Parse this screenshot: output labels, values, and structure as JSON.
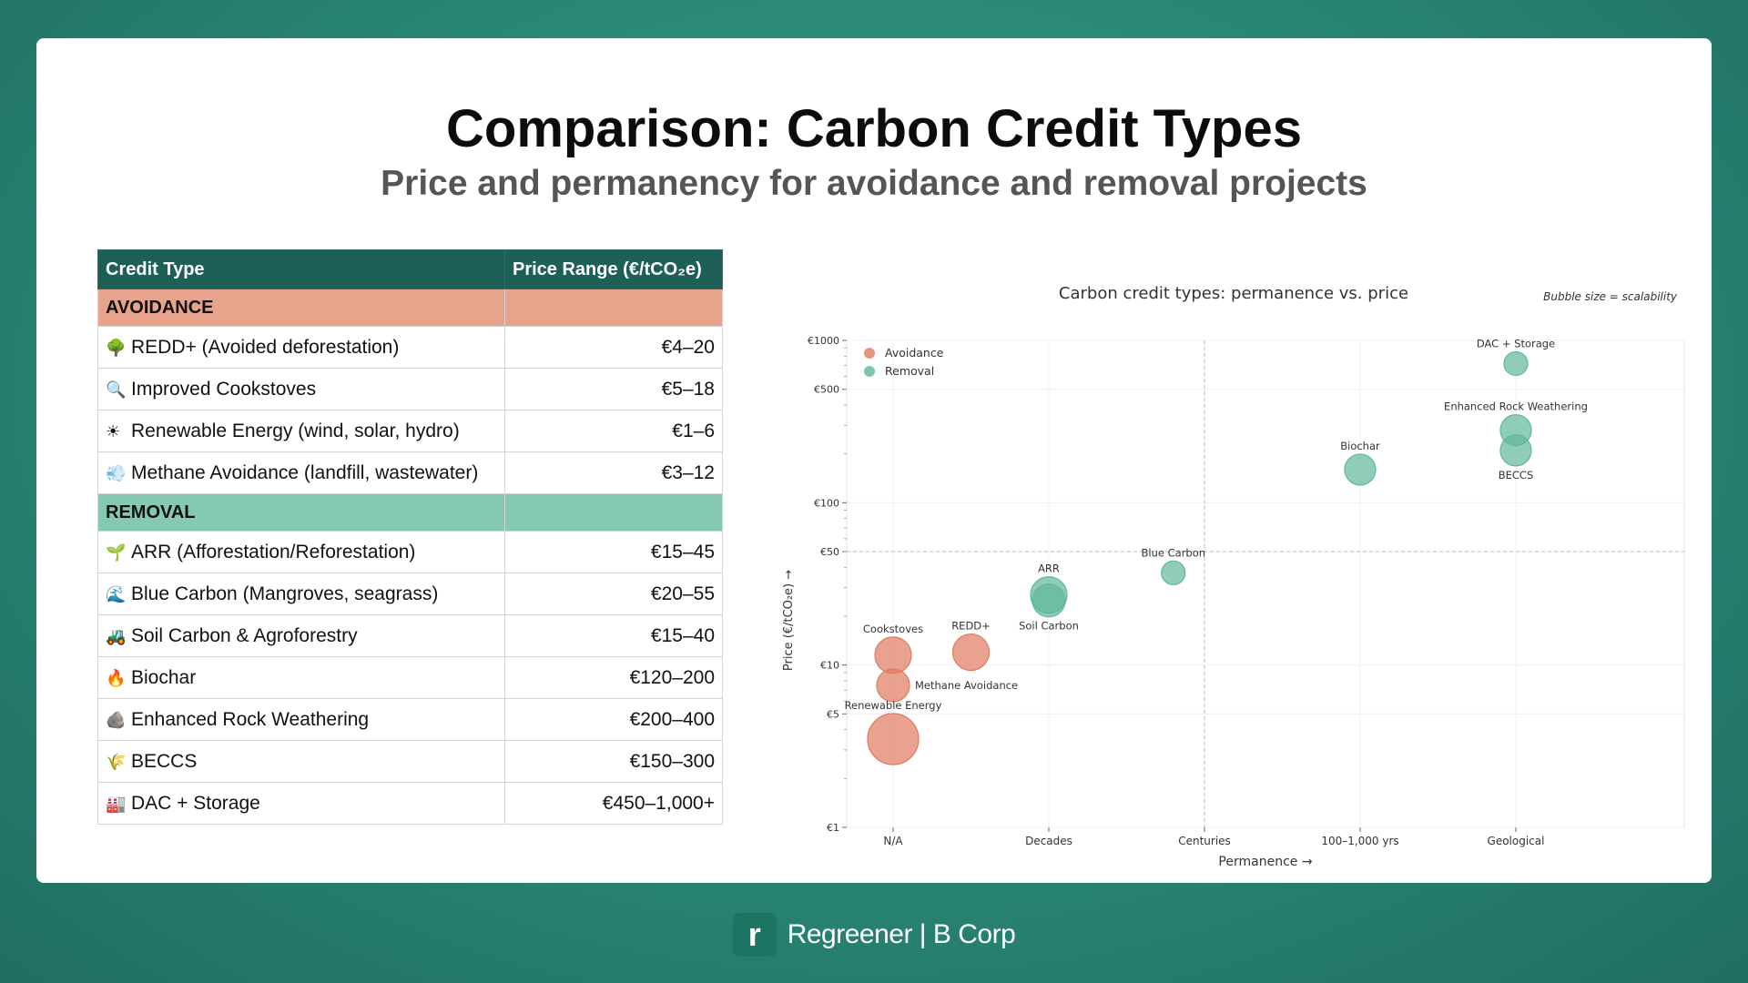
{
  "slide": {
    "title": "Comparison: Carbon Credit Types",
    "subtitle": "Price and permanency for avoidance and removal projects"
  },
  "table": {
    "headers": [
      "Credit Type",
      "Price Range (€/tCO₂e)"
    ],
    "sections": [
      {
        "label": "AVOIDANCE",
        "color": "#e8a38c",
        "rows": [
          {
            "icon": "tree-icon",
            "glyph": "🌳",
            "name": "REDD+ (Avoided deforestation)",
            "price": "€4–20"
          },
          {
            "icon": "magnifier-icon",
            "glyph": "🔍",
            "name": "Improved Cookstoves",
            "price": "€5–18"
          },
          {
            "icon": "sun-icon",
            "glyph": "☀",
            "name": "Renewable Energy (wind, solar, hydro)",
            "price": "€1–6"
          },
          {
            "icon": "wind-icon",
            "glyph": "💨",
            "name": "Methane Avoidance (landfill, wastewater)",
            "price": "€3–12"
          }
        ]
      },
      {
        "label": "REMOVAL",
        "color": "#86c9b2",
        "rows": [
          {
            "icon": "seedling-icon",
            "glyph": "🌱",
            "name": "ARR (Afforestation/Reforestation)",
            "price": "€15–45"
          },
          {
            "icon": "wave-icon",
            "glyph": "🌊",
            "name": "Blue Carbon (Mangroves, seagrass)",
            "price": "€20–55"
          },
          {
            "icon": "tractor-icon",
            "glyph": "🚜",
            "name": "Soil Carbon & Agroforestry",
            "price": "€15–40"
          },
          {
            "icon": "fire-icon",
            "glyph": "🔥",
            "name": "Biochar",
            "price": "€120–200"
          },
          {
            "icon": "rock-icon",
            "glyph": "🪨",
            "name": "Enhanced Rock Weathering",
            "price": "€200–400"
          },
          {
            "icon": "grain-icon",
            "glyph": "🌾",
            "name": "BECCS",
            "price": "€150–300"
          },
          {
            "icon": "factory-icon",
            "glyph": "🏭",
            "name": "DAC + Storage",
            "price": "€450–1,000+"
          }
        ]
      }
    ]
  },
  "chart_data": {
    "type": "scatter",
    "title": "Carbon credit types: permanence vs. price",
    "note": "Bubble size = scalability",
    "xlabel": "Permanence  →",
    "ylabel": "Price (€/tCO₂e)  →",
    "x_categories": [
      "N/A",
      "Decades",
      "Centuries",
      "100–1,000 yrs",
      "Geological"
    ],
    "y_scale": "log",
    "ylim": [
      1,
      1000
    ],
    "y_ticks": [
      {
        "value": 1,
        "label": "€1"
      },
      {
        "value": 5,
        "label": "€5"
      },
      {
        "value": 10,
        "label": "€10"
      },
      {
        "value": 50,
        "label": "€50"
      },
      {
        "value": 100,
        "label": "€100"
      },
      {
        "value": 500,
        "label": "€500"
      },
      {
        "value": 1000,
        "label": "€1000"
      }
    ],
    "reference_lines": {
      "x": 2,
      "y": 50
    },
    "legend_position": "top-left",
    "grid": true,
    "series": [
      {
        "name": "Avoidance",
        "color": "#e07a5f",
        "points": [
          {
            "label": "Cookstoves",
            "x": 0,
            "y": 11.5,
            "size": 1.0,
            "label_pos": "above"
          },
          {
            "label": "REDD+",
            "x": 0.5,
            "y": 12,
            "size": 1.0,
            "label_pos": "above"
          },
          {
            "label": "Methane Avoidance",
            "x": 0,
            "y": 7.5,
            "size": 0.9,
            "label_pos": "right"
          },
          {
            "label": "Renewable Energy",
            "x": 0,
            "y": 3.5,
            "size": 1.4,
            "label_pos": "above"
          }
        ]
      },
      {
        "name": "Removal",
        "color": "#5fb89a",
        "points": [
          {
            "label": "ARR",
            "x": 1,
            "y": 27,
            "size": 1.0,
            "label_pos": "above"
          },
          {
            "label": "Soil Carbon",
            "x": 1,
            "y": 25,
            "size": 0.9,
            "label_pos": "below"
          },
          {
            "label": "Blue Carbon",
            "x": 1.8,
            "y": 37,
            "size": 0.65,
            "label_pos": "above"
          },
          {
            "label": "Biochar",
            "x": 3,
            "y": 160,
            "size": 0.85,
            "label_pos": "above"
          },
          {
            "label": "Enhanced Rock Weathering",
            "x": 4,
            "y": 280,
            "size": 0.85,
            "label_pos": "above"
          },
          {
            "label": "BECCS",
            "x": 4,
            "y": 210,
            "size": 0.85,
            "label_pos": "below"
          },
          {
            "label": "DAC + Storage",
            "x": 4,
            "y": 720,
            "size": 0.65,
            "label_pos": "above"
          }
        ]
      }
    ]
  },
  "footer": {
    "brand": "Regreener | B Corp",
    "logo_letter": "r"
  }
}
